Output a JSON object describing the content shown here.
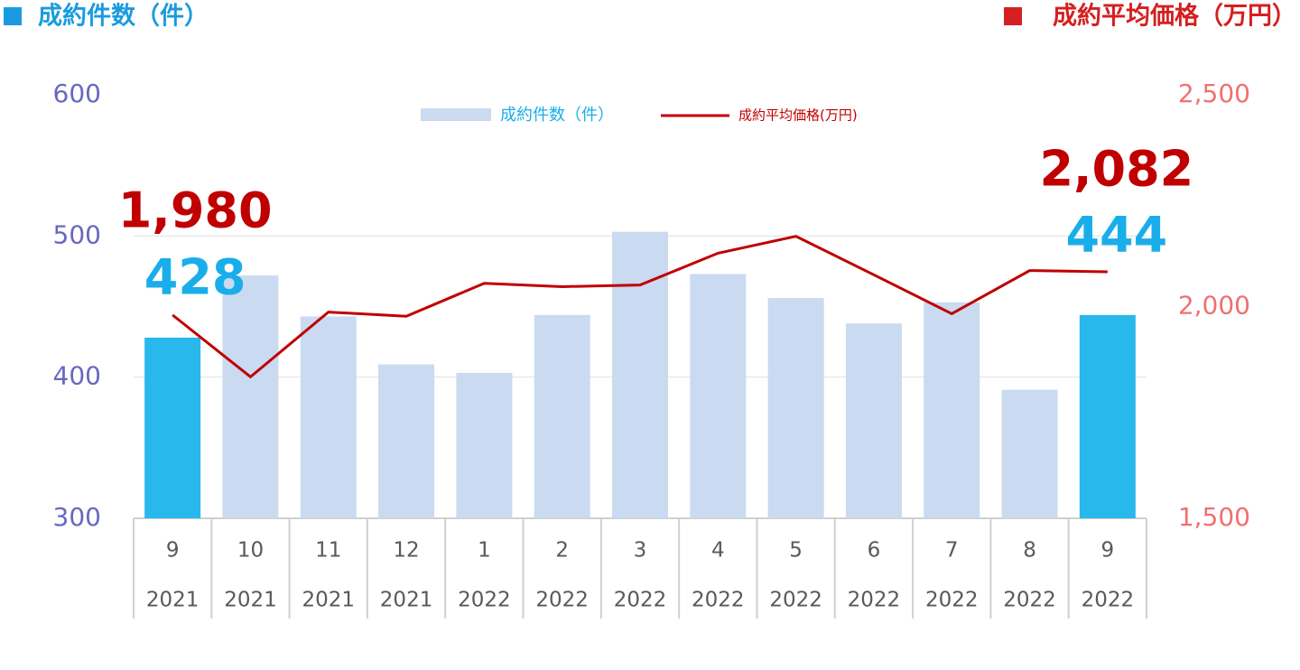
{
  "chart_data": {
    "type": "bar-line",
    "left_title": "成約件数（件）",
    "right_title": "成約平均価格（万円）",
    "left_title_color": "#1a9be0",
    "right_title_color": "#d42020",
    "categories": [
      "9",
      "10",
      "11",
      "12",
      "1",
      "2",
      "3",
      "4",
      "5",
      "6",
      "7",
      "8",
      "9"
    ],
    "category_years": [
      "2021",
      "2021",
      "2021",
      "2021",
      "2022",
      "2022",
      "2022",
      "2022",
      "2022",
      "2022",
      "2022",
      "2022",
      "2022"
    ],
    "series": [
      {
        "name": "成約件数（件）",
        "type": "bar",
        "color": "#c9daf1",
        "colors": [
          "#29b8ec",
          "#c9daf1",
          "#c9daf1",
          "#c9daf1",
          "#c9daf1",
          "#c9daf1",
          "#c9daf1",
          "#c9daf1",
          "#c9daf1",
          "#c9daf1",
          "#c9daf1",
          "#c9daf1",
          "#29b8ec"
        ],
        "label_color": "#19aeea",
        "values": [
          428,
          472,
          443,
          409,
          403,
          444,
          503,
          473,
          456,
          438,
          453,
          391,
          444
        ],
        "value_labels": [
          "428",
          null,
          null,
          null,
          null,
          null,
          null,
          null,
          null,
          null,
          null,
          null,
          "444"
        ]
      },
      {
        "name": "成約平均価格(万円)",
        "type": "line",
        "axis": "y2",
        "color": "#c00000",
        "label_color": "#c00000",
        "values": [
          1980,
          1834,
          1987,
          1977,
          2055,
          2047,
          2051,
          2126,
          2166,
          2075,
          1983,
          2085,
          2082
        ],
        "value_labels": [
          "1,980",
          null,
          null,
          null,
          null,
          null,
          null,
          null,
          null,
          null,
          null,
          null,
          "2,082"
        ]
      }
    ],
    "ylim": [
      300,
      600
    ],
    "yticks": [
      300,
      400,
      500,
      600
    ],
    "ytick_color": "#6868c0",
    "y2lim": [
      1500,
      2500
    ],
    "y2ticks": [
      {
        "value": 1500,
        "label": "1,500"
      },
      {
        "value": 2000,
        "label": "2,000"
      },
      {
        "value": 2500,
        "label": "2,500"
      }
    ],
    "y2tick_color": "#f07070",
    "grid": true
  }
}
